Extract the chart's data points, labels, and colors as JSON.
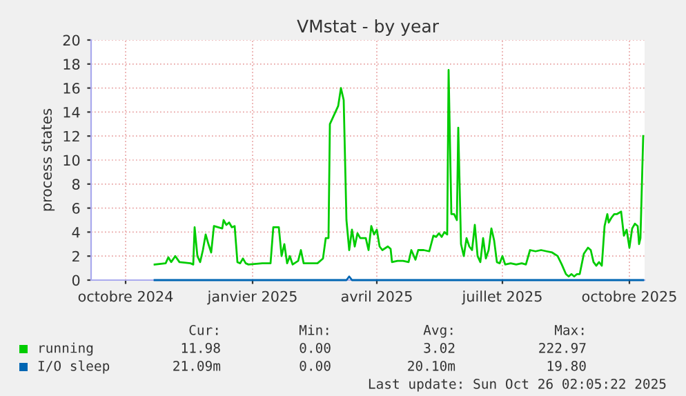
{
  "chart_data": {
    "type": "line",
    "title": "VMstat - by year",
    "ylabel": "process states",
    "xlim": [
      "2024-09-06",
      "2025-10-12"
    ],
    "xticks": [
      {
        "value": "2024-10-01",
        "label": "octobre 2024"
      },
      {
        "value": "2025-01-01",
        "label": "janvier 2025"
      },
      {
        "value": "2025-04-01",
        "label": "avril 2025"
      },
      {
        "value": "2025-07-01",
        "label": "juillet 2025"
      },
      {
        "value": "2025-10-01",
        "label": "octobre 2025"
      }
    ],
    "ylim": [
      0,
      20
    ],
    "yticks": [
      0,
      2,
      4,
      6,
      8,
      10,
      12,
      14,
      16,
      18,
      20
    ],
    "grid": true,
    "legend": "bottom",
    "series": [
      {
        "name": "running",
        "color": "#00cc00",
        "x": [
          "2024-10-22",
          "2024-10-30",
          "2024-11-01",
          "2024-11-03",
          "2024-11-06",
          "2024-11-09",
          "2024-11-17",
          "2024-11-19",
          "2024-11-20",
          "2024-11-22",
          "2024-11-24",
          "2024-11-26",
          "2024-11-28",
          "2024-11-30",
          "2024-12-02",
          "2024-12-04",
          "2024-12-07",
          "2024-12-10",
          "2024-12-11",
          "2024-12-13",
          "2024-12-15",
          "2024-12-17",
          "2024-12-19",
          "2024-12-21",
          "2024-12-23",
          "2024-12-25",
          "2024-12-27",
          "2024-12-29",
          "2025-01-08",
          "2025-01-14",
          "2025-01-16",
          "2025-01-20",
          "2025-01-22",
          "2025-01-24",
          "2025-01-26",
          "2025-01-28",
          "2025-01-30",
          "2025-02-03",
          "2025-02-05",
          "2025-02-07",
          "2025-02-11",
          "2025-02-17",
          "2025-02-21",
          "2025-02-23",
          "2025-02-25",
          "2025-02-26",
          "2025-02-28",
          "2025-03-02",
          "2025-03-04",
          "2025-03-06",
          "2025-03-08",
          "2025-03-10",
          "2025-03-12",
          "2025-03-14",
          "2025-03-16",
          "2025-03-18",
          "2025-03-20",
          "2025-03-24",
          "2025-03-26",
          "2025-03-28",
          "2025-03-30",
          "2025-04-01",
          "2025-04-03",
          "2025-04-05",
          "2025-04-09",
          "2025-04-11",
          "2025-04-12",
          "2025-04-16",
          "2025-04-20",
          "2025-04-24",
          "2025-04-26",
          "2025-04-29",
          "2025-05-01",
          "2025-05-05",
          "2025-05-09",
          "2025-05-12",
          "2025-05-14",
          "2025-05-16",
          "2025-05-18",
          "2025-05-20",
          "2025-05-22",
          "2025-05-23",
          "2025-05-25",
          "2025-05-27",
          "2025-05-29",
          "2025-05-30",
          "2025-06-01",
          "2025-06-03",
          "2025-06-05",
          "2025-06-07",
          "2025-06-09",
          "2025-06-11",
          "2025-06-13",
          "2025-06-15",
          "2025-06-17",
          "2025-06-19",
          "2025-06-21",
          "2025-06-23",
          "2025-06-25",
          "2025-06-27",
          "2025-06-29",
          "2025-07-01",
          "2025-07-03",
          "2025-07-07",
          "2025-07-11",
          "2025-07-15",
          "2025-07-18",
          "2025-07-21",
          "2025-07-25",
          "2025-07-29",
          "2025-08-02",
          "2025-08-06",
          "2025-08-10",
          "2025-08-13",
          "2025-08-16",
          "2025-08-18",
          "2025-08-20",
          "2025-08-22",
          "2025-08-24",
          "2025-08-26",
          "2025-08-29",
          "2025-09-01",
          "2025-09-03",
          "2025-09-05",
          "2025-09-07",
          "2025-09-09",
          "2025-09-11",
          "2025-09-13",
          "2025-09-15",
          "2025-09-16",
          "2025-09-18",
          "2025-09-20",
          "2025-09-22",
          "2025-09-25",
          "2025-09-27",
          "2025-09-29",
          "2025-10-01",
          "2025-10-03",
          "2025-10-05",
          "2025-10-07",
          "2025-10-08",
          "2025-10-09",
          "2025-10-11"
        ],
        "values": [
          1.3,
          1.4,
          1.9,
          1.5,
          2.0,
          1.5,
          1.4,
          1.3,
          4.4,
          2.0,
          1.5,
          2.5,
          3.8,
          3.0,
          2.3,
          4.5,
          4.4,
          4.3,
          5.0,
          4.6,
          4.8,
          4.4,
          4.5,
          1.5,
          1.4,
          1.8,
          1.4,
          1.3,
          1.4,
          1.4,
          4.4,
          4.4,
          2.0,
          3.0,
          1.4,
          2.0,
          1.3,
          1.6,
          2.5,
          1.4,
          1.4,
          1.4,
          1.8,
          3.5,
          3.5,
          13.0,
          13.5,
          14.0,
          14.5,
          16.0,
          15.0,
          5.0,
          2.5,
          4.2,
          2.8,
          3.9,
          3.5,
          3.5,
          2.5,
          4.5,
          3.8,
          4.2,
          2.8,
          2.5,
          2.8,
          2.6,
          1.5,
          1.6,
          1.6,
          1.5,
          2.5,
          1.7,
          2.5,
          2.5,
          2.4,
          3.7,
          3.6,
          3.9,
          3.6,
          4.0,
          3.8,
          17.5,
          5.5,
          5.5,
          5.0,
          12.7,
          3.0,
          2.0,
          3.5,
          2.8,
          2.5,
          4.6,
          2.0,
          1.5,
          3.5,
          1.8,
          2.5,
          4.3,
          3.3,
          1.5,
          1.4,
          2.0,
          1.3,
          1.4,
          1.3,
          1.4,
          1.3,
          2.5,
          2.4,
          2.5,
          2.4,
          2.3,
          2.0,
          1.3,
          0.5,
          0.3,
          0.5,
          0.3,
          0.5,
          0.5,
          2.2,
          2.7,
          2.5,
          1.5,
          1.2,
          1.5,
          1.2,
          4.5,
          5.5,
          4.8,
          5.2,
          5.5,
          5.5,
          5.7,
          3.7,
          4.2,
          2.7,
          4.3,
          4.7,
          4.5,
          3.0,
          3.5,
          12.0
        ]
      },
      {
        "name": "I/O sleep",
        "color": "#0066b3",
        "x": [
          "2024-10-22",
          "2025-03-10",
          "2025-03-12",
          "2025-03-14",
          "2025-10-11"
        ],
        "values": [
          0,
          0,
          0.3,
          0,
          0
        ]
      }
    ],
    "annotations": [
      "Cur:",
      "Min:",
      "Avg:",
      "Max:",
      "11.98",
      "0.00",
      "3.02",
      "222.97",
      "21.09m",
      "0.00",
      "20.10m",
      "19.80",
      "Last update: Sun Oct 26 02:05:22 2025"
    ]
  }
}
